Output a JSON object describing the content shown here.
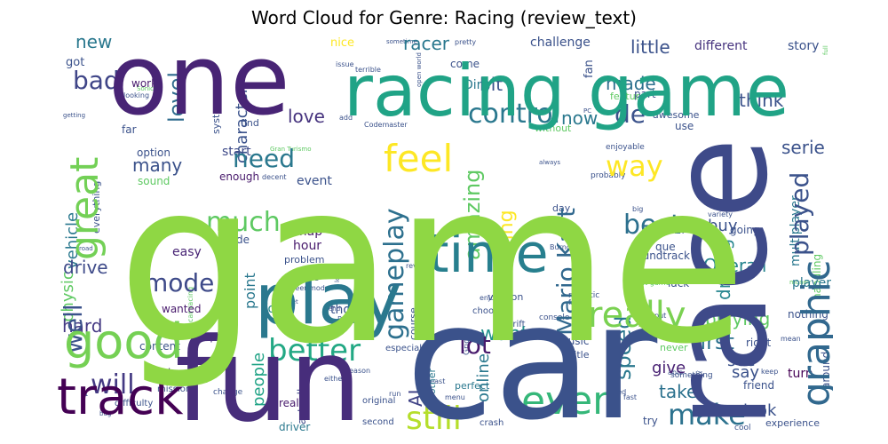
{
  "chart_data": {
    "type": "wordcloud",
    "title": "Word Cloud for Genre: Racing (review_text)",
    "words": [
      {
        "text": "game",
        "weight": 1.0,
        "color": "#8fd744"
      },
      {
        "text": "car",
        "weight": 0.8,
        "color": "#3b528b"
      },
      {
        "text": "race",
        "weight": 0.62,
        "color": "#3e4a89"
      },
      {
        "text": "fun",
        "weight": 0.6,
        "color": "#472d7b"
      },
      {
        "text": "one",
        "weight": 0.6,
        "color": "#482475"
      },
      {
        "text": "racing game",
        "weight": 0.48,
        "color": "#20a386"
      },
      {
        "text": "play",
        "weight": 0.42,
        "color": "#2a788e"
      },
      {
        "text": "time",
        "weight": 0.33,
        "color": "#277f8e"
      },
      {
        "text": "track",
        "weight": 0.33,
        "color": "#440154"
      },
      {
        "text": "good",
        "weight": 0.32,
        "color": "#75d054"
      },
      {
        "text": "even",
        "weight": 0.3,
        "color": "#35b779"
      },
      {
        "text": "great",
        "weight": 0.28,
        "color": "#73d056"
      },
      {
        "text": "graphic",
        "weight": 0.28,
        "color": "#31688e"
      },
      {
        "text": "really",
        "weight": 0.24,
        "color": "#7ad151"
      },
      {
        "text": "feel",
        "weight": 0.24,
        "color": "#fde725"
      },
      {
        "text": "still",
        "weight": 0.22,
        "color": "#b5de2b"
      },
      {
        "text": "better",
        "weight": 0.2,
        "color": "#22a884"
      },
      {
        "text": "make",
        "weight": 0.2,
        "color": "#2c728e"
      },
      {
        "text": "gameplay",
        "weight": 0.19,
        "color": "#2d708e"
      },
      {
        "text": "control",
        "weight": 0.19,
        "color": "#2a788e"
      },
      {
        "text": "will",
        "weight": 0.18,
        "color": "#443a83"
      },
      {
        "text": "much",
        "weight": 0.18,
        "color": "#5ec962"
      },
      {
        "text": "way",
        "weight": 0.18,
        "color": "#fde725"
      },
      {
        "text": "best",
        "weight": 0.18,
        "color": "#2d708e"
      },
      {
        "text": "lot",
        "weight": 0.17,
        "color": "#481a6c"
      },
      {
        "text": "need",
        "weight": 0.17,
        "color": "#2a788e"
      },
      {
        "text": "Mario Kart",
        "weight": 0.17,
        "color": "#31688e"
      },
      {
        "text": "well",
        "weight": 0.16,
        "color": "#3b528b"
      },
      {
        "text": "mode",
        "weight": 0.16,
        "color": "#3e4a89"
      },
      {
        "text": "bad",
        "weight": 0.15,
        "color": "#404688"
      },
      {
        "text": "level",
        "weight": 0.15,
        "color": "#2f6c8e"
      },
      {
        "text": "de",
        "weight": 0.15,
        "color": "#3b528b"
      },
      {
        "text": "played",
        "weight": 0.15,
        "color": "#3b528b"
      },
      {
        "text": "amazing",
        "weight": 0.15,
        "color": "#5ec962"
      },
      {
        "text": "speed",
        "weight": 0.15,
        "color": "#2a788e"
      },
      {
        "text": "first",
        "weight": 0.15,
        "color": "#2c728e"
      },
      {
        "text": "want",
        "weight": 0.14,
        "color": "#21918c"
      },
      {
        "text": "thing",
        "weight": 0.14,
        "color": "#fde725"
      },
      {
        "text": "Overall",
        "weight": 0.13,
        "color": "#25858e"
      },
      {
        "text": "driving",
        "weight": 0.13,
        "color": "#25858e"
      },
      {
        "text": "drive",
        "weight": 0.12,
        "color": "#3e4a89"
      },
      {
        "text": "racer",
        "weight": 0.12,
        "color": "#2a788e"
      },
      {
        "text": "playing",
        "weight": 0.12,
        "color": "#5ec962"
      },
      {
        "text": "many",
        "weight": 0.12,
        "color": "#3b528b"
      },
      {
        "text": "hard",
        "weight": 0.12,
        "color": "#443983"
      },
      {
        "text": "new",
        "weight": 0.11,
        "color": "#2a788e"
      },
      {
        "text": "made",
        "weight": 0.11,
        "color": "#2d708e"
      },
      {
        "text": "bit",
        "weight": 0.11,
        "color": "#3b528b"
      },
      {
        "text": "AI",
        "weight": 0.11,
        "color": "#414487"
      },
      {
        "text": "take",
        "weight": 0.11,
        "color": "#2c728e"
      },
      {
        "text": "character",
        "weight": 0.11,
        "color": "#3b528b"
      },
      {
        "text": "little",
        "weight": 0.1,
        "color": "#3b528b"
      },
      {
        "text": "love",
        "weight": 0.1,
        "color": "#46337e"
      },
      {
        "text": "now",
        "weight": 0.1,
        "color": "#2a788e"
      },
      {
        "text": "think",
        "weight": 0.1,
        "color": "#3b528b"
      },
      {
        "text": "serie",
        "weight": 0.1,
        "color": "#3b528b"
      },
      {
        "text": "vehicle",
        "weight": 0.1,
        "color": "#2a788e"
      },
      {
        "text": "physic",
        "weight": 0.1,
        "color": "#5ec962"
      },
      {
        "text": "buy",
        "weight": 0.1,
        "color": "#3b528b"
      },
      {
        "text": "see",
        "weight": 0.1,
        "color": "#3b528b"
      },
      {
        "text": "say",
        "weight": 0.1,
        "color": "#3b528b"
      },
      {
        "text": "look",
        "weight": 0.1,
        "color": "#3b528b"
      },
      {
        "text": "give",
        "weight": 0.1,
        "color": "#482173"
      },
      {
        "text": "people",
        "weight": 0.1,
        "color": "#20a386"
      },
      {
        "text": "go",
        "weight": 0.1,
        "color": "#481f70"
      },
      {
        "text": "online",
        "weight": 0.1,
        "color": "#2a788e"
      },
      {
        "text": "point",
        "weight": 0.09,
        "color": "#2a788e"
      },
      {
        "text": "Dirt",
        "weight": 0.08,
        "color": "#2a788e"
      },
      {
        "text": "event",
        "weight": 0.08,
        "color": "#3b528b"
      },
      {
        "text": "start",
        "weight": 0.08,
        "color": "#3e4a89"
      },
      {
        "text": "map",
        "weight": 0.08,
        "color": "#481a6c"
      },
      {
        "text": "hour",
        "weight": 0.08,
        "color": "#481a6c"
      },
      {
        "text": "easy",
        "weight": 0.08,
        "color": "#482475"
      },
      {
        "text": "Forza",
        "weight": 0.08,
        "color": "#25858e"
      },
      {
        "text": "though",
        "weight": 0.08,
        "color": "#3b528b"
      },
      {
        "text": "player",
        "weight": 0.08,
        "color": "#2a788e"
      },
      {
        "text": "multiplayer",
        "weight": 0.08,
        "color": "#2a788e"
      },
      {
        "text": "different",
        "weight": 0.08,
        "color": "#46337e"
      },
      {
        "text": "challenge",
        "weight": 0.08,
        "color": "#3b528b"
      },
      {
        "text": "story",
        "weight": 0.08,
        "color": "#3b528b"
      },
      {
        "text": "got",
        "weight": 0.07,
        "color": "#3b528b"
      },
      {
        "text": "nice",
        "weight": 0.07,
        "color": "#fde725"
      },
      {
        "text": "fan",
        "weight": 0.07,
        "color": "#3b528b"
      },
      {
        "text": "work",
        "weight": 0.06,
        "color": "#481a6c"
      },
      {
        "text": "come",
        "weight": 0.06,
        "color": "#3b528b"
      },
      {
        "text": "awesome",
        "weight": 0.06,
        "color": "#3b528b"
      },
      {
        "text": "use",
        "weight": 0.06,
        "color": "#3b528b"
      },
      {
        "text": "wanted",
        "weight": 0.06,
        "color": "#481a6c"
      },
      {
        "text": "quite",
        "weight": 0.06,
        "color": "#482475"
      },
      {
        "text": "know",
        "weight": 0.06,
        "color": "#482475"
      },
      {
        "text": "real",
        "weight": 0.06,
        "color": "#481a6c"
      },
      {
        "text": "actually",
        "weight": 0.06,
        "color": "#3e4a89"
      },
      {
        "text": "driver",
        "weight": 0.05,
        "color": "#2a788e"
      },
      {
        "text": "course",
        "weight": 0.05,
        "color": "#3b528b"
      },
      {
        "text": "another",
        "weight": 0.05,
        "color": "#2a788e"
      },
      {
        "text": "perfect",
        "weight": 0.05,
        "color": "#2a788e"
      },
      {
        "text": "back",
        "weight": 0.05,
        "color": "#3b528b"
      },
      {
        "text": "music",
        "weight": 0.05,
        "color": "#3b528b"
      },
      {
        "text": "title",
        "weight": 0.05,
        "color": "#3b528b"
      },
      {
        "text": "never",
        "weight": 0.05,
        "color": "#5ec962"
      },
      {
        "text": "try",
        "weight": 0.05,
        "color": "#3b528b"
      },
      {
        "text": "friend",
        "weight": 0.05,
        "color": "#3b528b"
      },
      {
        "text": "turn",
        "weight": 0.05,
        "color": "#440154"
      },
      {
        "text": "right",
        "weight": 0.05,
        "color": "#3b528b"
      },
      {
        "text": "around",
        "weight": 0.05,
        "color": "#3b528b"
      },
      {
        "text": "handling",
        "weight": 0.05,
        "color": "#5ec962"
      },
      {
        "text": "nothing",
        "weight": 0.05,
        "color": "#3b528b"
      },
      {
        "text": "lack",
        "weight": 0.05,
        "color": "#3b528b"
      },
      {
        "text": "going",
        "weight": 0.05,
        "color": "#3b528b"
      },
      {
        "text": "seem",
        "weight": 0.05,
        "color": "#3b528b"
      },
      {
        "text": "soundtrack",
        "weight": 0.05,
        "color": "#3b528b"
      },
      {
        "text": "que",
        "weight": 0.05,
        "color": "#3b528b"
      },
      {
        "text": "arcade",
        "weight": 0.05,
        "color": "#3b528b"
      },
      {
        "text": "content",
        "weight": 0.05,
        "color": "#3b528b"
      },
      {
        "text": "option",
        "weight": 0.05,
        "color": "#3b528b"
      },
      {
        "text": "sound",
        "weight": 0.05,
        "color": "#5ec962"
      },
      {
        "text": "enough",
        "weight": 0.05,
        "color": "#481a6c"
      },
      {
        "text": "problem",
        "weight": 0.04,
        "color": "#3b528b"
      },
      {
        "text": "system",
        "weight": 0.04,
        "color": "#3b528b"
      },
      {
        "text": "find",
        "weight": 0.04,
        "color": "#3b528b"
      },
      {
        "text": "far",
        "weight": 0.04,
        "color": "#3b528b"
      },
      {
        "text": "part",
        "weight": 0.04,
        "color": "#3b528b"
      },
      {
        "text": "feature",
        "weight": 0.04,
        "color": "#5ec962"
      },
      {
        "text": "without",
        "weight": 0.04,
        "color": "#5ec962"
      },
      {
        "text": "day",
        "weight": 0.04,
        "color": "#3b528b"
      },
      {
        "text": "version",
        "weight": 0.04,
        "color": "#3b528b"
      },
      {
        "text": "everything",
        "weight": 0.03,
        "color": "#3b528b"
      },
      {
        "text": "enjoyable",
        "weight": 0.03,
        "color": "#3b528b"
      },
      {
        "text": "experience",
        "weight": 0.04,
        "color": "#3b528b"
      },
      {
        "text": "mission",
        "weight": 0.03,
        "color": "#3b528b"
      },
      {
        "text": "difficulty",
        "weight": 0.03,
        "color": "#3b528b"
      },
      {
        "text": "although",
        "weight": 0.03,
        "color": "#3b528b"
      },
      {
        "text": "realistic",
        "weight": 0.03,
        "color": "#3b528b"
      },
      {
        "text": "probably",
        "weight": 0.03,
        "color": "#3b528b"
      },
      {
        "text": "especially",
        "weight": 0.03,
        "color": "#3b528b"
      },
      {
        "text": "original",
        "weight": 0.03,
        "color": "#3b528b"
      },
      {
        "text": "second",
        "weight": 0.03,
        "color": "#3b528b"
      },
      {
        "text": "crash",
        "weight": 0.03,
        "color": "#3b528b"
      },
      {
        "text": "choose",
        "weight": 0.03,
        "color": "#3b528b"
      },
      {
        "text": "drift",
        "weight": 0.03,
        "color": "#3b528b"
      },
      {
        "text": "great game",
        "weight": 0.03,
        "color": "#5ec962"
      },
      {
        "text": "best racing",
        "weight": 0.03,
        "color": "#3b528b"
      },
      {
        "text": "car racing",
        "weight": 0.03,
        "color": "#5ec962"
      },
      {
        "text": "career mode",
        "weight": 0.03,
        "color": "#3b528b"
      },
      {
        "text": "Codemaster",
        "weight": 0.03,
        "color": "#3b528b"
      },
      {
        "text": "Burnout",
        "weight": 0.03,
        "color": "#3b528b"
      },
      {
        "text": "Grid",
        "weight": 0.03,
        "color": "#3b528b"
      },
      {
        "text": "PS2",
        "weight": 0.03,
        "color": "#3b528b"
      },
      {
        "text": "PS3",
        "weight": 0.03,
        "color": "#3b528b"
      },
      {
        "text": "fast",
        "weight": 0.03,
        "color": "#3b528b"
      },
      {
        "text": "used",
        "weight": 0.03,
        "color": "#3b528b"
      },
      {
        "text": "least",
        "weight": 0.03,
        "color": "#3b528b"
      },
      {
        "text": "run",
        "weight": 0.03,
        "color": "#3b528b"
      },
      {
        "text": "menu",
        "weight": 0.03,
        "color": "#3b528b"
      },
      {
        "text": "either",
        "weight": 0.03,
        "color": "#3b528b"
      },
      {
        "text": "change",
        "weight": 0.03,
        "color": "#3b528b"
      },
      {
        "text": "reason",
        "weight": 0.03,
        "color": "#3b528b"
      },
      {
        "text": "good game",
        "weight": 0.03,
        "color": "#5ec962"
      },
      {
        "text": "boring",
        "weight": 0.03,
        "color": "#3b528b"
      },
      {
        "text": "something",
        "weight": 0.03,
        "color": "#3b528b"
      },
      {
        "text": "keep",
        "weight": 0.03,
        "color": "#3b528b"
      },
      {
        "text": "mean",
        "weight": 0.03,
        "color": "#3b528b"
      },
      {
        "text": "money",
        "weight": 0.02,
        "color": "#5ec962"
      },
      {
        "text": "variety",
        "weight": 0.02,
        "color": "#3b528b"
      },
      {
        "text": "big",
        "weight": 0.02,
        "color": "#3b528b"
      },
      {
        "text": "definitely",
        "weight": 0.02,
        "color": "#3b528b"
      },
      {
        "text": "console",
        "weight": 0.02,
        "color": "#3b528b"
      },
      {
        "text": "review",
        "weight": 0.02,
        "color": "#3b528b"
      },
      {
        "text": "enjoy",
        "weight": 0.02,
        "color": "#3b528b"
      },
      {
        "text": "fact",
        "weight": 0.02,
        "color": "#3b528b"
      },
      {
        "text": "put",
        "weight": 0.02,
        "color": "#3b528b"
      },
      {
        "text": "long",
        "weight": 0.02,
        "color": "#3b528b"
      },
      {
        "text": "end",
        "weight": 0.02,
        "color": "#3b528b"
      },
      {
        "text": "set",
        "weight": 0.02,
        "color": "#3b528b"
      },
      {
        "text": "able",
        "weight": 0.02,
        "color": "#3b528b"
      },
      {
        "text": "every",
        "weight": 0.02,
        "color": "#3b528b"
      },
      {
        "text": "bug",
        "weight": 0.02,
        "color": "#3b528b"
      },
      {
        "text": "F1",
        "weight": 0.02,
        "color": "#3b528b"
      },
      {
        "text": "pretty",
        "weight": 0.02,
        "color": "#3b528b"
      },
      {
        "text": "sometime",
        "weight": 0.02,
        "color": "#3b528b"
      },
      {
        "text": "issue",
        "weight": 0.02,
        "color": "#3b528b"
      },
      {
        "text": "terrible",
        "weight": 0.02,
        "color": "#3b528b"
      },
      {
        "text": "open world",
        "weight": 0.02,
        "color": "#3b528b"
      },
      {
        "text": "looking",
        "weight": 0.02,
        "color": "#3b528b"
      },
      {
        "text": "Sonic",
        "weight": 0.02,
        "color": "#5ec962"
      },
      {
        "text": "getting",
        "weight": 0.02,
        "color": "#3b528b"
      },
      {
        "text": "add",
        "weight": 0.02,
        "color": "#3b528b"
      },
      {
        "text": "PC",
        "weight": 0.02,
        "color": "#3b528b"
      },
      {
        "text": "always",
        "weight": 0.02,
        "color": "#3b528b"
      },
      {
        "text": "decent",
        "weight": 0.02,
        "color": "#3b528b"
      },
      {
        "text": "Gran Turismo",
        "weight": 0.02,
        "color": "#5ec962"
      },
      {
        "text": "road",
        "weight": 0.02,
        "color": "#3b528b"
      },
      {
        "text": "cool",
        "weight": 0.03,
        "color": "#3b528b"
      },
      {
        "text": "full",
        "weight": 0.02,
        "color": "#5ec962"
      }
    ]
  }
}
